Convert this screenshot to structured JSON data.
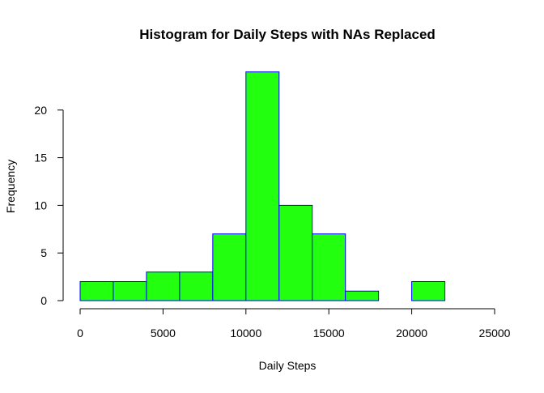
{
  "chart_data": {
    "type": "bar",
    "title": "Histogram for Daily Steps with NAs Replaced",
    "xlabel": "Daily Steps",
    "ylabel": "Frequency",
    "bins": [
      {
        "start": 0,
        "end": 2000,
        "count": 2
      },
      {
        "start": 2000,
        "end": 4000,
        "count": 2
      },
      {
        "start": 4000,
        "end": 6000,
        "count": 3
      },
      {
        "start": 6000,
        "end": 8000,
        "count": 3
      },
      {
        "start": 8000,
        "end": 10000,
        "count": 7
      },
      {
        "start": 10000,
        "end": 12000,
        "count": 24
      },
      {
        "start": 12000,
        "end": 14000,
        "count": 10
      },
      {
        "start": 14000,
        "end": 16000,
        "count": 7
      },
      {
        "start": 16000,
        "end": 18000,
        "count": 1
      },
      {
        "start": 18000,
        "end": 20000,
        "count": 0
      },
      {
        "start": 20000,
        "end": 22000,
        "count": 2
      }
    ],
    "xlim": [
      0,
      25000
    ],
    "ylim": [
      0,
      25
    ],
    "xticks": [
      0,
      5000,
      10000,
      15000,
      20000,
      25000
    ],
    "xtick_labels": [
      "0",
      "5000",
      "10000",
      "15000",
      "20000",
      "25000"
    ],
    "yticks": [
      0,
      5,
      10,
      15,
      20
    ],
    "ytick_labels": [
      "0",
      "5",
      "10",
      "15",
      "20"
    ],
    "grid": false,
    "colors": {
      "bar_fill": "#22ff0f",
      "bar_border": "#0000ff",
      "axis": "#000000"
    }
  }
}
